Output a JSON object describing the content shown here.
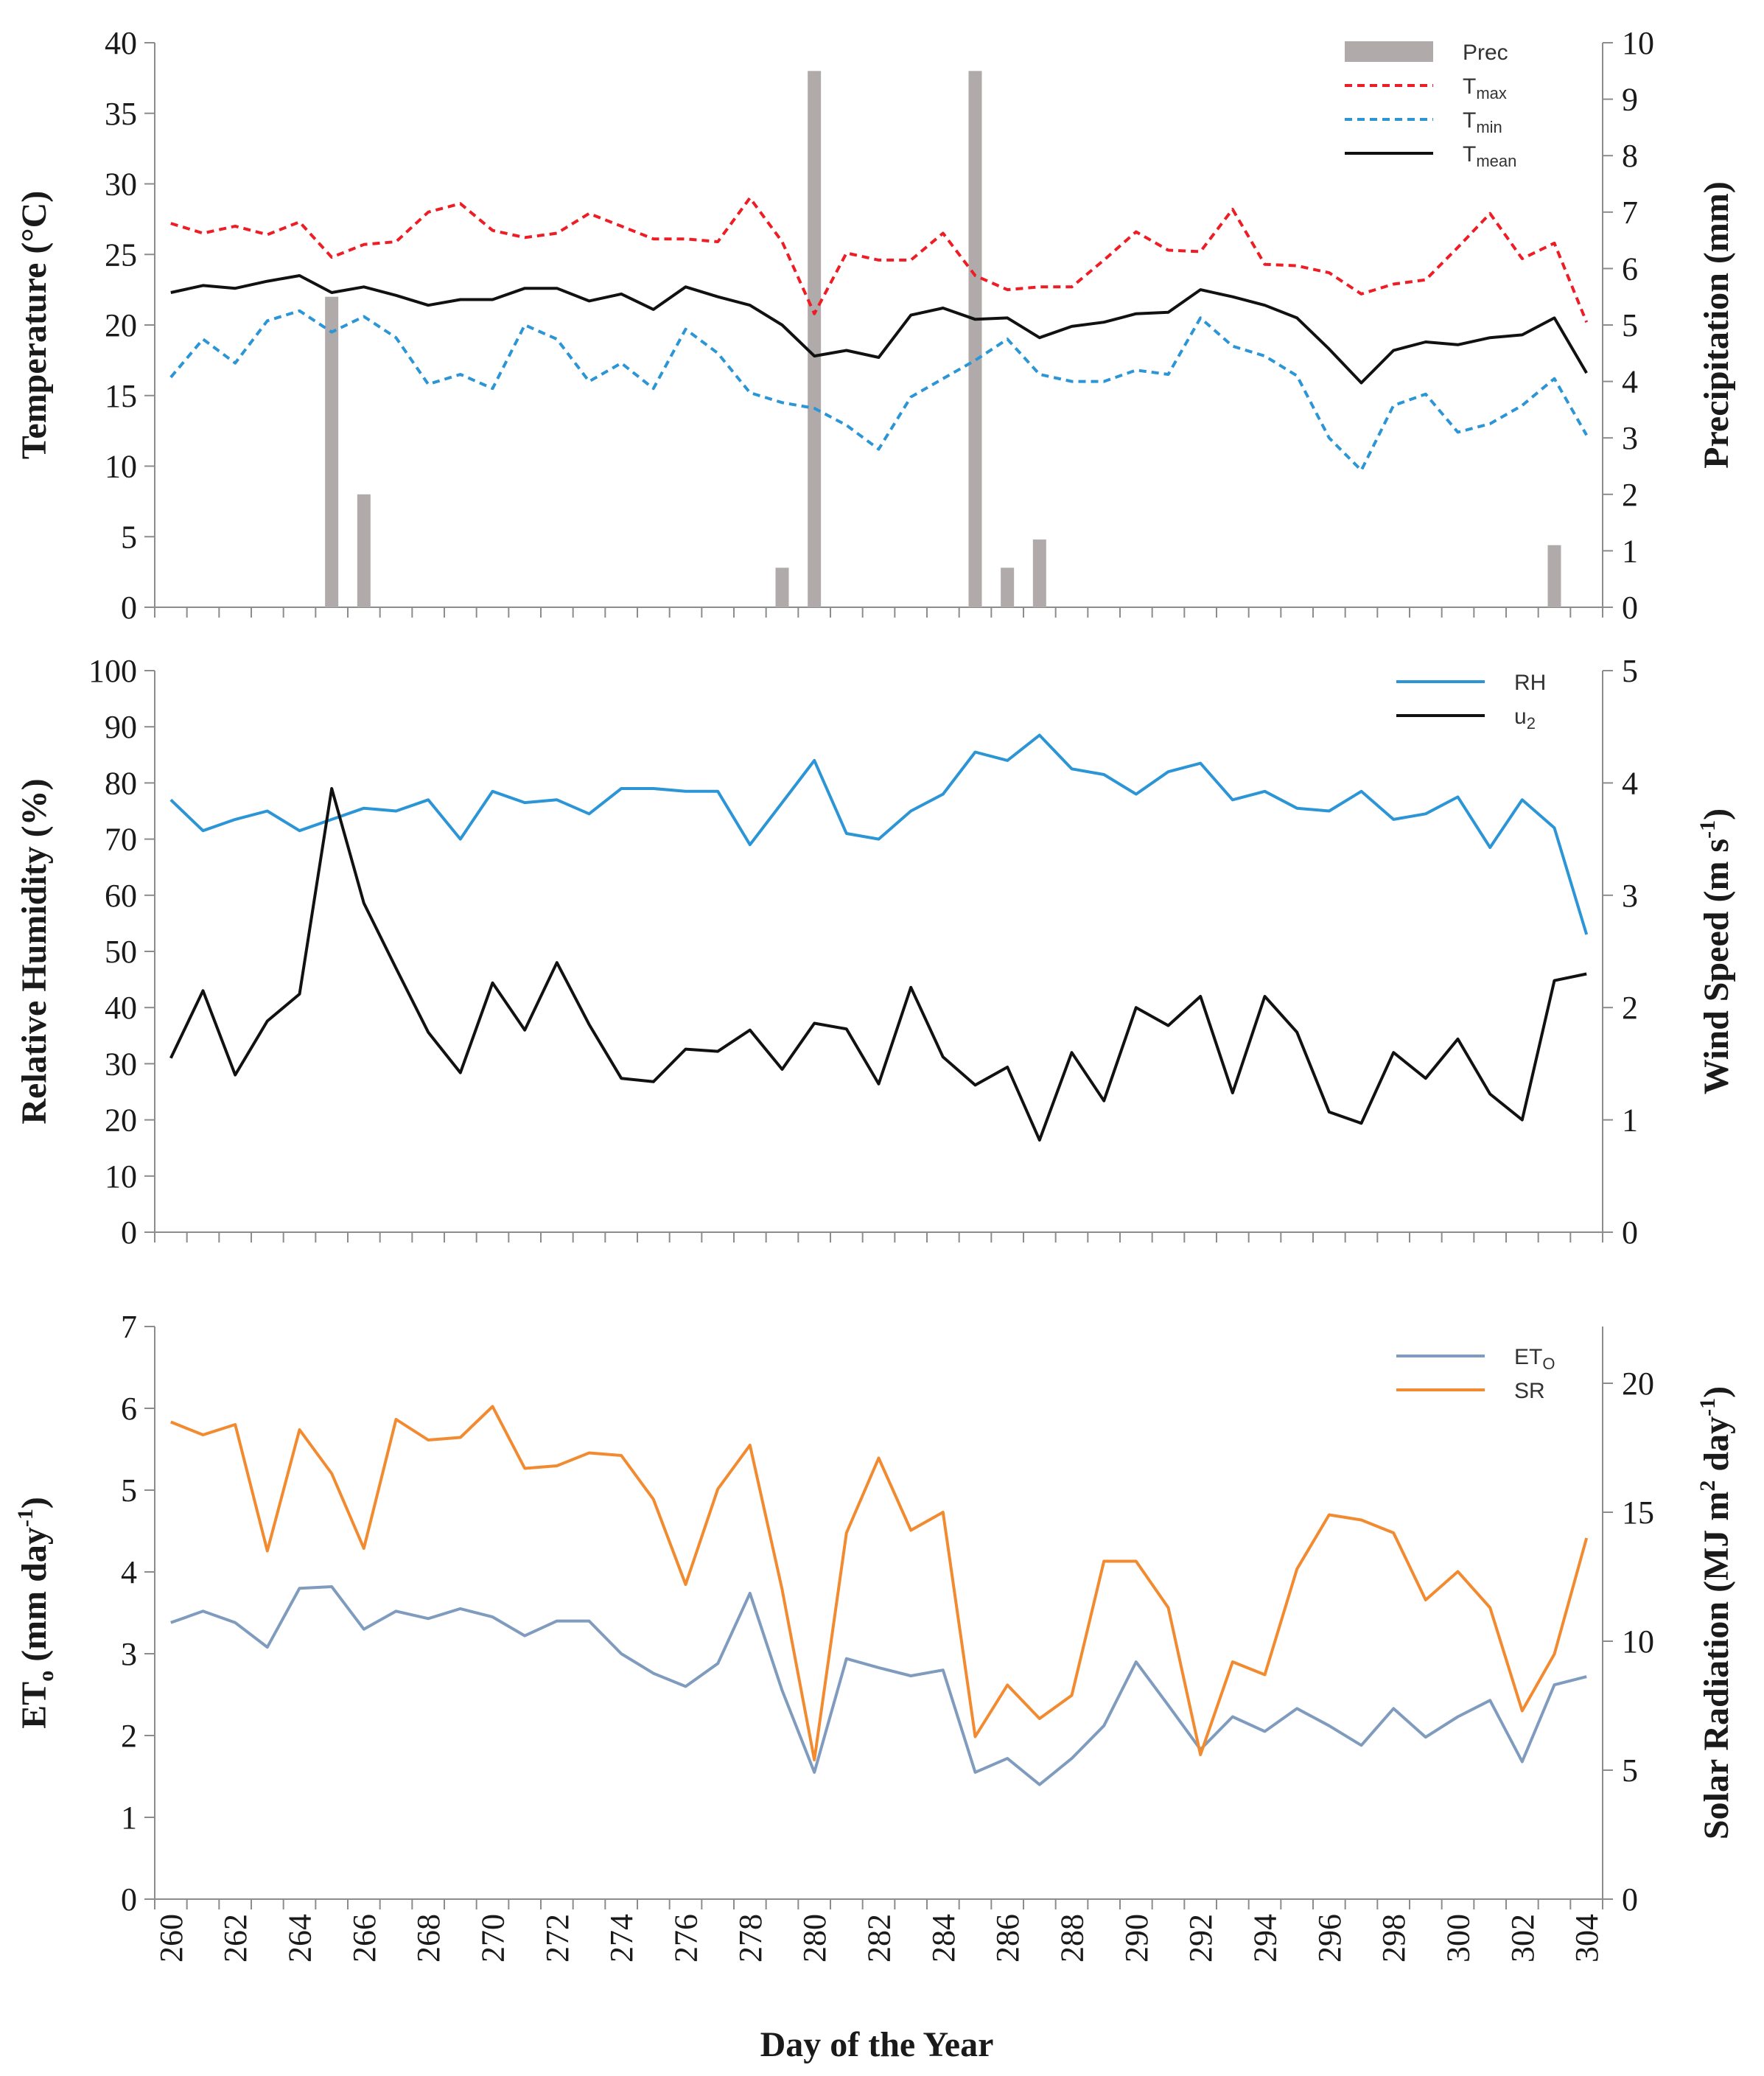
{
  "xlabel": "Day of the Year",
  "x_ticks": [
    260,
    262,
    264,
    266,
    268,
    270,
    272,
    274,
    276,
    278,
    280,
    282,
    284,
    286,
    288,
    290,
    292,
    294,
    296,
    298,
    300,
    302,
    304
  ],
  "colors": {
    "prec": "#b0aaaa",
    "tmax": "#ee1c24",
    "tmin": "#2b95d6",
    "tmean": "#111111",
    "rh": "#2b95d6",
    "u2": "#111111",
    "eto": "#7f9bbd",
    "sr": "#f28a30"
  },
  "chart_data": [
    {
      "type": "line+bar",
      "ylabel_left": "Temperature (°C)",
      "ylabel_right": "Precipitation (mm)",
      "ylim_left": [
        0,
        40
      ],
      "ylim_right": [
        0,
        10
      ],
      "yticks_left": [
        0,
        5,
        10,
        15,
        20,
        25,
        30,
        35,
        40
      ],
      "yticks_right": [
        0,
        1,
        2,
        3,
        4,
        5,
        6,
        7,
        8,
        9,
        10
      ],
      "legend": [
        {
          "key": "prec",
          "main": "Prec",
          "sub": ""
        },
        {
          "key": "tmax",
          "main": "T",
          "sub": "max"
        },
        {
          "key": "tmin",
          "main": "T",
          "sub": "min"
        },
        {
          "key": "tmean",
          "main": "T",
          "sub": "mean"
        }
      ],
      "x": [
        260,
        261,
        262,
        263,
        264,
        265,
        266,
        267,
        268,
        269,
        270,
        271,
        272,
        273,
        274,
        275,
        276,
        277,
        278,
        279,
        280,
        281,
        282,
        283,
        284,
        285,
        286,
        287,
        288,
        289,
        290,
        291,
        292,
        293,
        294,
        295,
        296,
        297,
        298,
        299,
        300,
        301,
        302,
        303,
        304
      ],
      "series": [
        {
          "key": "tmax",
          "name": "Tmax",
          "axis": "left",
          "dashed": true,
          "values": [
            27.2,
            26.5,
            27.0,
            26.4,
            27.3,
            24.8,
            25.7,
            25.9,
            28.0,
            28.6,
            26.7,
            26.2,
            26.5,
            27.9,
            27.0,
            26.1,
            26.1,
            25.9,
            29.0,
            25.9,
            20.8,
            25.1,
            24.6,
            24.6,
            26.5,
            23.5,
            22.5,
            22.7,
            22.7,
            24.6,
            26.6,
            25.3,
            25.2,
            28.2,
            24.3,
            24.2,
            23.7,
            22.2,
            22.9,
            23.2,
            25.5,
            27.9,
            24.7,
            25.8,
            20.2
          ]
        },
        {
          "key": "tmin",
          "name": "Tmin",
          "axis": "left",
          "dashed": true,
          "values": [
            16.3,
            19.0,
            17.3,
            20.3,
            21.0,
            19.5,
            20.6,
            19.1,
            15.8,
            16.5,
            15.5,
            20.0,
            19.0,
            16.0,
            17.3,
            15.5,
            19.7,
            18.0,
            15.2,
            14.5,
            14.1,
            12.9,
            11.2,
            14.9,
            16.2,
            17.5,
            19.0,
            16.5,
            16.0,
            16.0,
            16.8,
            16.5,
            20.5,
            18.5,
            17.8,
            16.4,
            12.0,
            9.7,
            14.3,
            15.1,
            12.4,
            13.0,
            14.3,
            16.2,
            12.2
          ]
        },
        {
          "key": "tmean",
          "name": "Tmean",
          "axis": "left",
          "dashed": false,
          "values": [
            22.3,
            22.8,
            22.6,
            23.1,
            23.5,
            22.3,
            22.7,
            22.1,
            21.4,
            21.8,
            21.8,
            22.6,
            22.6,
            21.7,
            22.2,
            21.1,
            22.7,
            22.0,
            21.4,
            20.0,
            17.8,
            18.2,
            17.7,
            20.7,
            21.2,
            20.4,
            20.5,
            19.1,
            19.9,
            20.2,
            20.8,
            20.9,
            22.5,
            22.0,
            21.4,
            20.5,
            18.3,
            15.9,
            18.2,
            18.8,
            18.6,
            19.1,
            19.3,
            20.5,
            16.6
          ]
        },
        {
          "key": "prec",
          "name": "Prec",
          "axis": "right",
          "type": "bar",
          "values": [
            0,
            0,
            0,
            0,
            0,
            5.5,
            2.0,
            0,
            0,
            0,
            0,
            0,
            0,
            0,
            0,
            0,
            0,
            0,
            0,
            0.7,
            9.5,
            0,
            0,
            0,
            0,
            9.5,
            0.7,
            1.2,
            0,
            0,
            0,
            0,
            0,
            0,
            0,
            0,
            0,
            0,
            0,
            0,
            0,
            0,
            0,
            1.1,
            0
          ]
        }
      ]
    },
    {
      "type": "line",
      "ylabel_left": "Relative Humidity (%)",
      "ylabel_right": "Wind Speed (m s-1)",
      "ylabel_right_main": "Wind Speed (m s",
      "ylabel_right_sup": "-1",
      "ylabel_right_close": ")",
      "ylim_left": [
        0,
        100
      ],
      "ylim_right": [
        0,
        5
      ],
      "yticks_left": [
        0,
        10,
        20,
        30,
        40,
        50,
        60,
        70,
        80,
        90,
        100
      ],
      "yticks_right": [
        0,
        1,
        2,
        3,
        4,
        5
      ],
      "legend": [
        {
          "key": "rh",
          "main": "RH",
          "sub": ""
        },
        {
          "key": "u2",
          "main": "u",
          "sub": "2"
        }
      ],
      "x": [
        260,
        261,
        262,
        263,
        264,
        265,
        266,
        267,
        268,
        269,
        270,
        271,
        272,
        273,
        274,
        275,
        276,
        277,
        278,
        279,
        280,
        281,
        282,
        283,
        284,
        285,
        286,
        287,
        288,
        289,
        290,
        291,
        292,
        293,
        294,
        295,
        296,
        297,
        298,
        299,
        300,
        301,
        302,
        303,
        304
      ],
      "series": [
        {
          "key": "rh",
          "name": "RH",
          "axis": "left",
          "values": [
            77,
            71.5,
            73.5,
            75,
            71.5,
            73.5,
            75.5,
            75,
            77,
            70,
            78.5,
            76.5,
            77,
            74.5,
            79,
            79,
            78.5,
            78.5,
            69,
            76.5,
            84,
            71,
            70,
            75,
            78,
            85.5,
            84,
            88.5,
            82.5,
            81.5,
            78,
            82,
            83.5,
            77,
            78.5,
            75.5,
            75,
            78.5,
            73.5,
            74.5,
            77.5,
            68.5,
            77,
            72,
            53
          ]
        },
        {
          "key": "u2",
          "name": "u2",
          "axis": "right",
          "values": [
            1.55,
            2.15,
            1.4,
            1.88,
            2.12,
            3.95,
            2.93,
            2.35,
            1.78,
            1.42,
            2.22,
            1.8,
            2.4,
            1.85,
            1.37,
            1.34,
            1.63,
            1.61,
            1.8,
            1.45,
            1.86,
            1.81,
            1.32,
            2.18,
            1.56,
            1.31,
            1.47,
            0.82,
            1.6,
            1.17,
            2.0,
            1.84,
            2.1,
            1.24,
            2.1,
            1.78,
            1.07,
            0.97,
            1.6,
            1.37,
            1.72,
            1.23,
            1.0,
            2.24,
            2.3
          ]
        }
      ]
    },
    {
      "type": "line",
      "ylabel_left": "ETo (mm day-1)",
      "ylabel_left_parts": [
        "ET",
        "o",
        " (mm day",
        "-1",
        ")"
      ],
      "ylabel_right": "Solar Radiation (MJ m2 day-1)",
      "ylabel_right_parts": [
        "Solar Radiation (MJ m",
        "2",
        " day",
        "-1",
        ")"
      ],
      "ylim_left": [
        0,
        7
      ],
      "ylim_right": [
        0,
        22.2
      ],
      "yticks_left": [
        0,
        1,
        2,
        3,
        4,
        5,
        6,
        7
      ],
      "yticks_right": [
        0,
        5,
        10,
        15,
        20
      ],
      "legend": [
        {
          "key": "eto",
          "main": "ET",
          "sub": "O"
        },
        {
          "key": "sr",
          "main": "SR",
          "sub": ""
        }
      ],
      "x": [
        260,
        261,
        262,
        263,
        264,
        265,
        266,
        267,
        268,
        269,
        270,
        271,
        272,
        273,
        274,
        275,
        276,
        277,
        278,
        279,
        280,
        281,
        282,
        283,
        284,
        285,
        286,
        287,
        288,
        289,
        290,
        291,
        292,
        293,
        294,
        295,
        296,
        297,
        298,
        299,
        300,
        301,
        302,
        303,
        304
      ],
      "series": [
        {
          "key": "eto",
          "name": "ETo",
          "axis": "left",
          "values": [
            3.38,
            3.52,
            3.38,
            3.08,
            3.8,
            3.82,
            3.3,
            3.52,
            3.43,
            3.55,
            3.45,
            3.22,
            3.4,
            3.4,
            3.0,
            2.76,
            2.6,
            2.88,
            3.74,
            2.55,
            1.55,
            2.94,
            2.83,
            2.73,
            2.8,
            1.55,
            1.72,
            1.4,
            1.72,
            2.12,
            2.9,
            2.37,
            1.83,
            2.23,
            2.05,
            2.33,
            2.12,
            1.88,
            2.33,
            1.98,
            2.23,
            2.43,
            1.68,
            2.62,
            2.72
          ]
        },
        {
          "key": "sr",
          "name": "SR",
          "axis": "right",
          "values": [
            18.5,
            18.0,
            18.4,
            13.5,
            18.2,
            16.5,
            13.6,
            18.6,
            17.8,
            17.9,
            19.1,
            16.7,
            16.8,
            17.3,
            17.2,
            15.5,
            12.2,
            15.9,
            17.6,
            12.0,
            5.4,
            14.2,
            17.1,
            14.3,
            15.0,
            6.3,
            8.3,
            7.0,
            7.9,
            13.1,
            13.1,
            11.3,
            5.6,
            9.2,
            8.7,
            12.8,
            14.9,
            14.7,
            14.2,
            11.6,
            12.7,
            11.3,
            7.3,
            9.5,
            14.0
          ]
        }
      ]
    }
  ]
}
